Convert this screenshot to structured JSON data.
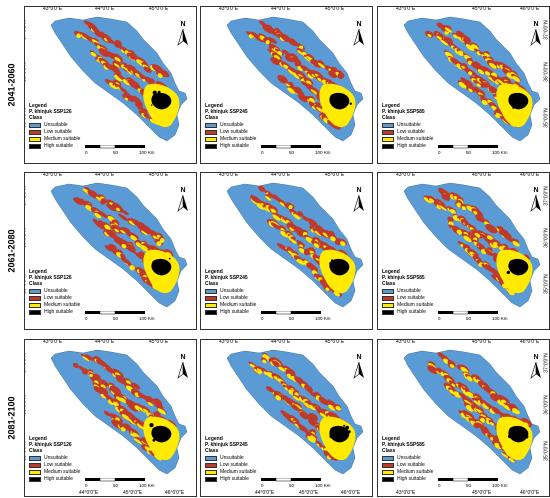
{
  "row_labels": [
    "2041-2060",
    "2061-2080",
    "2081-2100"
  ],
  "lon_ticks": [
    "43°0'0\"E",
    "44°0'0\"E",
    "45°0'0\"E",
    "46°0'0\"E"
  ],
  "lat_ticks": [
    "37°0'0\"N",
    "36°0'0\"N",
    "35°0'0\"N"
  ],
  "north_letter": "N",
  "legend": {
    "title": "Legend",
    "class_label": "Class",
    "classes": [
      {
        "label": "Unsuitable",
        "color": "#5b9bd5"
      },
      {
        "label": "Low suitable",
        "color": "#c0392b"
      },
      {
        "label": "Medium suitable",
        "color": "#ffea00"
      },
      {
        "label": "High suitable",
        "color": "#000000"
      }
    ]
  },
  "scale": {
    "ticks": [
      "0",
      "50",
      "100 Km"
    ]
  },
  "panels": [
    {
      "scenario": "P. khinjuk SSP126"
    },
    {
      "scenario": "P. khinjuk SSP245"
    },
    {
      "scenario": "P. khinjuk SSP585"
    },
    {
      "scenario": "P. khinjuk SSP126"
    },
    {
      "scenario": "P. khinjuk SSP245"
    },
    {
      "scenario": "P. khinjuk SSP585"
    },
    {
      "scenario": "P. khinjuk SSP126"
    },
    {
      "scenario": "P. khinjuk SSP245"
    },
    {
      "scenario": "P. khinjuk SSP585"
    }
  ],
  "colors": {
    "unsuitable": "#5b9bd5",
    "low": "#c0392b",
    "medium": "#ffea00",
    "high": "#000000"
  }
}
